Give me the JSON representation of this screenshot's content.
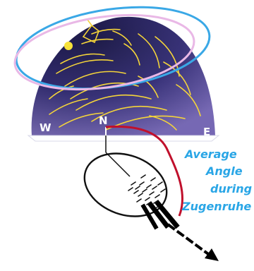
{
  "labels": {
    "west": "W",
    "north": "N",
    "east": "E"
  },
  "caption": {
    "line1": "Average",
    "line2": "Angle",
    "line3": "during",
    "line4": "Zugenruhe"
  },
  "colors": {
    "dome_dark": "#15124a",
    "dome_mid": "#3b2f86",
    "dome_light": "#7a6cb8",
    "star_arcs": "#f4d43a",
    "sun": "#f7e23a",
    "outer_ring": "#3aa8e6",
    "inner_ring": "#e9b8e6",
    "angle_arc": "#c0102c",
    "caption_text": "#2aa6e6",
    "ground": "#ffffff",
    "arrows": "#000000"
  },
  "icons": {
    "sun": "sun-icon",
    "bird_marks": "bird-orientation-marks",
    "heading_arrow": "arrow-down-right-icon"
  }
}
